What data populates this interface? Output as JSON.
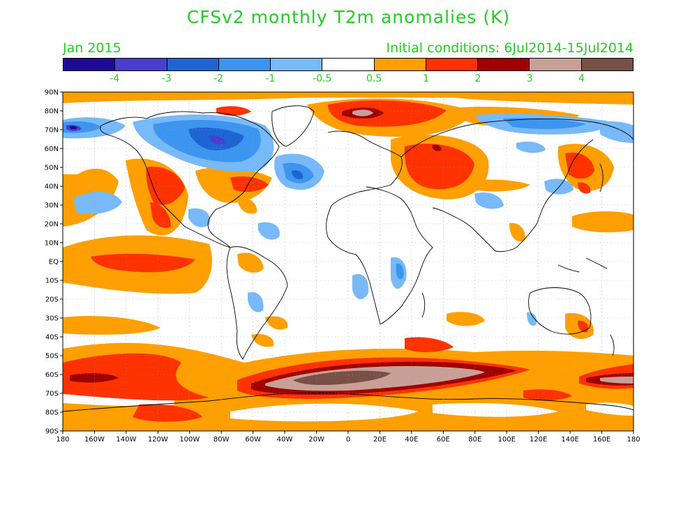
{
  "title": "CFSv2 monthly T2m anomalies (K)",
  "subtitle_left": "Jan 2015",
  "subtitle_right": "Initial conditions: 6Jul2014-15Jul2014",
  "colorbar": {
    "colors": [
      "#1e0a96",
      "#4a3ed0",
      "#1f64d2",
      "#3c96f0",
      "#78b9fa",
      "#ffffff",
      "#ffa000",
      "#ff3200",
      "#a00000",
      "#c8a096",
      "#785046"
    ],
    "labels": [
      "-4",
      "-3",
      "-2",
      "-1",
      "-0.5",
      "0.5",
      "1",
      "2",
      "3",
      "4"
    ]
  },
  "map": {
    "lat_labels": [
      "90N",
      "80N",
      "70N",
      "60N",
      "50N",
      "40N",
      "30N",
      "20N",
      "10N",
      "EQ",
      "10S",
      "20S",
      "30S",
      "40S",
      "50S",
      "60S",
      "70S",
      "80S",
      "90S"
    ],
    "lon_labels": [
      "180",
      "160W",
      "140W",
      "120W",
      "100W",
      "80W",
      "60W",
      "40W",
      "20W",
      "0",
      "20E",
      "40E",
      "60E",
      "80E",
      "100E",
      "120E",
      "140E",
      "160E",
      "180"
    ],
    "colors": {
      "land_line": "#000000",
      "grid": "#999999"
    }
  }
}
